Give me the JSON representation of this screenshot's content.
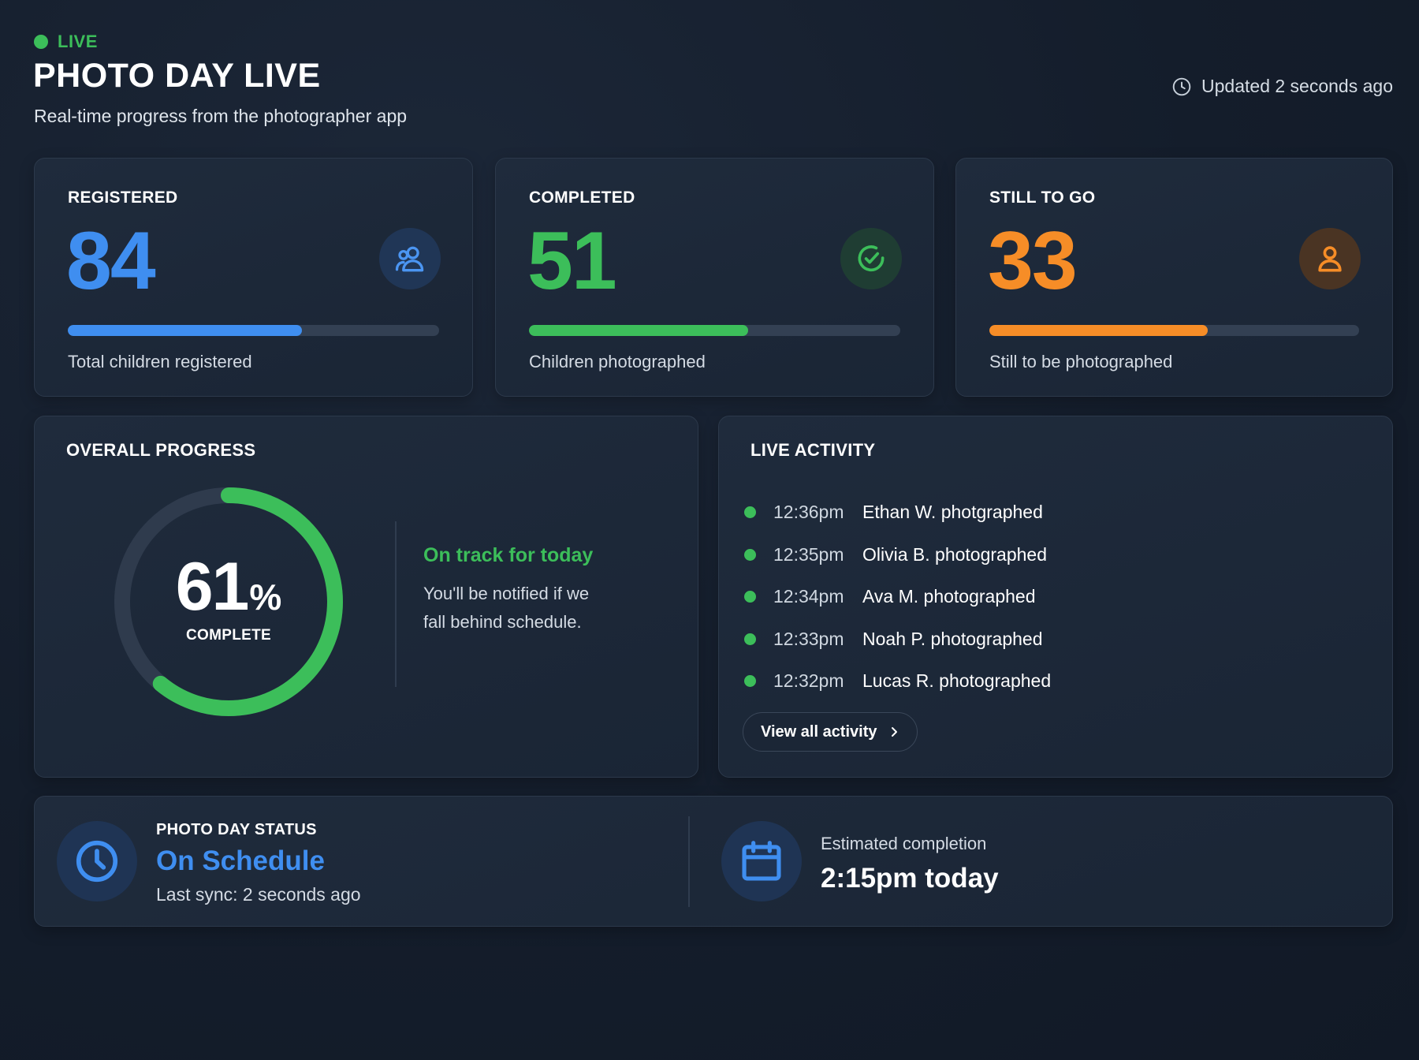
{
  "header": {
    "live_label": "LIVE",
    "title": "PHOTO DAY LIVE",
    "subtitle": "Real-time progress from the photographer app",
    "updated": "Updated 2 seconds ago"
  },
  "stats": {
    "registered": {
      "label": "REGISTERED",
      "value": "84",
      "description": "Total children registered",
      "progress": 0.63,
      "color": "#3f8ef0",
      "icon": "users-icon"
    },
    "completed": {
      "label": "COMPLETED",
      "value": "51",
      "description": "Children photographed",
      "progress": 0.59,
      "color": "#3cbe5a",
      "icon": "check-circle-icon"
    },
    "remaining": {
      "label": "STILL TO GO",
      "value": "33",
      "description": "Still to be photographed",
      "progress": 0.59,
      "color": "#f68d27",
      "icon": "user-icon"
    }
  },
  "overall": {
    "title": "OVERALL PROGRESS",
    "percent": "61",
    "percent_sign": "%",
    "caption": "COMPLETE",
    "progress": 0.61,
    "status_title": "On track for today",
    "status_body": "You'll be notified if we fall behind schedule."
  },
  "activity": {
    "title": "LIVE ACTIVITY",
    "items": [
      {
        "time": "12:36pm",
        "text": "Ethan W. photgraphed"
      },
      {
        "time": "12:35pm",
        "text": "Olivia B. photographed"
      },
      {
        "time": "12:34pm",
        "text": "Ava M. photographed"
      },
      {
        "time": "12:33pm",
        "text": "Noah P. photographed"
      },
      {
        "time": "12:32pm",
        "text": "Lucas R. photographed"
      }
    ],
    "view_all": "View all activity"
  },
  "status": {
    "label": "PHOTO DAY STATUS",
    "value": "On Schedule",
    "sync": "Last sync: 2 seconds ago",
    "estimate_label": "Estimated completion",
    "estimate_value": "2:15pm today"
  },
  "colors": {
    "accent_green": "#3cbe5a",
    "accent_blue": "#3f8ef0",
    "accent_orange": "#f68d27"
  }
}
